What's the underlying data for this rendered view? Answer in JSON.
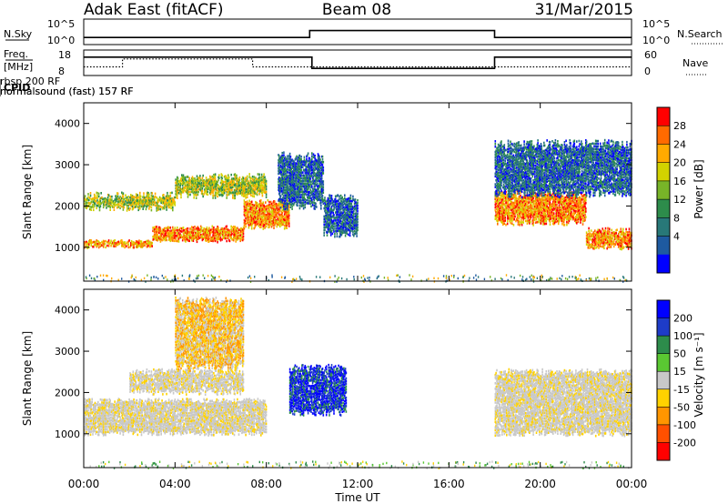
{
  "header": {
    "radar": "Adak East (fitACF)",
    "beam": "Beam 08",
    "date": "31/Mar/2015"
  },
  "noise_panel": {
    "left_label": "N.Sky",
    "right_label": "N.Search",
    "left_ticks": [
      "10^5",
      "10^0"
    ],
    "right_ticks": [
      "10^5",
      "10^0"
    ]
  },
  "freq_panel": {
    "left_label_line1": "Freq.",
    "left_label_line2": "[MHz]",
    "right_label": "Nave",
    "left_ticks": [
      "18",
      "8"
    ],
    "right_ticks": [
      "60",
      "0"
    ]
  },
  "cpid": {
    "label": "CPID",
    "segments": [
      {
        "text": "normalsound (fast) 157 RF",
        "start_hour": 0
      },
      {
        "text": "rbsp 200 RF",
        "start_hour": 2
      },
      {
        "text": "normalsound (fast) 157 RF",
        "start_hour": 8
      }
    ]
  },
  "power_panel": {
    "ylabel": "Slant Range [km]",
    "yticks": [
      1000,
      2000,
      3000,
      4000
    ],
    "colorbar": {
      "label": "Power [dB]",
      "ticks": [
        "28",
        "24",
        "20",
        "16",
        "12",
        "8",
        "4"
      ],
      "colors": [
        "#ff0000",
        "#ff6a00",
        "#ffaa00",
        "#d2d200",
        "#78b428",
        "#2d8c4b",
        "#287878",
        "#1e5aa0",
        "#0000ff"
      ]
    }
  },
  "velocity_panel": {
    "ylabel": "Slant Range [km]",
    "yticks": [
      1000,
      2000,
      3000,
      4000
    ],
    "colorbar": {
      "label": "Velocity [m s⁻¹]",
      "ticks": [
        "200",
        "100",
        "50",
        "15",
        "-15",
        "-50",
        "-100",
        "-200"
      ],
      "colors": [
        "#0000ff",
        "#1e3cc8",
        "#2d8c4b",
        "#5ac832",
        "#c8c8c8",
        "#ffd200",
        "#ff9600",
        "#ff5000",
        "#ff0000"
      ]
    }
  },
  "xaxis": {
    "label": "Time UT",
    "ticks": [
      "00:00",
      "04:00",
      "08:00",
      "12:00",
      "16:00",
      "20:00",
      "00:00"
    ]
  },
  "chart_data": {
    "type": "heatmap",
    "x_range_hours": [
      0,
      24
    ],
    "range_km": [
      180,
      4500
    ],
    "traces": {
      "noise_sky": [
        {
          "start": 0,
          "end": 9.9,
          "level": "low"
        },
        {
          "start": 9.9,
          "end": 18,
          "level": "high"
        },
        {
          "start": 18,
          "end": 24,
          "level": "low"
        }
      ],
      "frequency": [
        {
          "start": 0,
          "end": 10,
          "level": "high"
        },
        {
          "start": 10,
          "end": 18,
          "level": "low"
        },
        {
          "start": 18,
          "end": 24,
          "level": "high"
        }
      ],
      "nave": [
        {
          "start": 0,
          "end": 1.7,
          "level": "low"
        },
        {
          "start": 1.7,
          "end": 7.4,
          "level": "high"
        },
        {
          "start": 7.4,
          "end": 24,
          "level": "low"
        }
      ]
    },
    "power_bands": [
      {
        "start": 0,
        "end": 3,
        "r0": 1000,
        "r1": 1150,
        "level": "high",
        "noise": 90
      },
      {
        "start": 3,
        "end": 7,
        "r0": 1150,
        "r1": 1480,
        "level": "high",
        "noise": 120
      },
      {
        "start": 7,
        "end": 9,
        "r0": 1480,
        "r1": 2100,
        "level": "high",
        "noise": 150
      },
      {
        "start": 0,
        "end": 4,
        "r0": 1950,
        "r1": 2250,
        "level": "mid",
        "noise": 200
      },
      {
        "start": 4,
        "end": 8,
        "r0": 2250,
        "r1": 2700,
        "level": "mid",
        "noise": 200
      },
      {
        "start": 8.5,
        "end": 10.5,
        "r0": 2000,
        "r1": 3200,
        "level": "low",
        "noise": 250
      },
      {
        "start": 10.5,
        "end": 12,
        "r0": 1300,
        "r1": 2200,
        "level": "low",
        "noise": 180
      },
      {
        "start": 18,
        "end": 22,
        "r0": 1600,
        "r1": 2300,
        "level": "high",
        "noise": 200
      },
      {
        "start": 22,
        "end": 24,
        "r0": 1000,
        "r1": 1400,
        "level": "high",
        "noise": 180
      },
      {
        "start": 18,
        "end": 24,
        "r0": 2300,
        "r1": 3500,
        "level": "low",
        "noise": 250
      }
    ],
    "velocity_bands": [
      {
        "start": 0,
        "end": 8,
        "r0": 1000,
        "r1": 1800,
        "level": "zero",
        "noise": 150
      },
      {
        "start": 2,
        "end": 7,
        "r0": 2000,
        "r1": 2500,
        "level": "zero",
        "noise": 180
      },
      {
        "start": 4,
        "end": 7,
        "r0": 2600,
        "r1": 4200,
        "level": "negative",
        "noise": 250
      },
      {
        "start": 9,
        "end": 11.5,
        "r0": 1500,
        "r1": 2600,
        "level": "positive",
        "noise": 200
      },
      {
        "start": 18,
        "end": 24,
        "r0": 1000,
        "r1": 2500,
        "level": "zero",
        "noise": 180
      }
    ]
  }
}
